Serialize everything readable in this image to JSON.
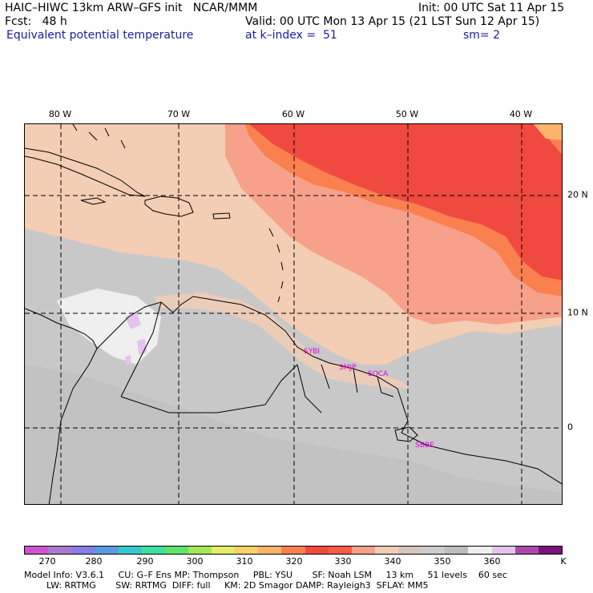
{
  "header": {
    "model_line": "HAIC–HIWC 13km ARW–GFS init   NCAR/MMM",
    "init": "Init: 00 UTC Sat 11 Apr 15",
    "fcst": "Fcst:   48 h",
    "valid": "Valid: 00 UTC Mon 13 Apr 15 (21 LST Sun 12 Apr 15)",
    "field": "Equivalent potential temperature",
    "level": "at k–index =  51",
    "smooth": "sm= 2"
  },
  "map": {
    "lon_labels": [
      "80 W",
      "70 W",
      "60 W",
      "50 W",
      "40 W"
    ],
    "lat_labels": [
      "20 N",
      "10 N",
      "0"
    ],
    "stations": [
      "SYBI",
      "SMJP",
      "SOCA",
      "SBBE"
    ]
  },
  "colorbar": {
    "colors": [
      "#cc55cc",
      "#a97bd0",
      "#8a7ce6",
      "#5a9ae0",
      "#37c9c9",
      "#3fe0a0",
      "#5fe36a",
      "#a2e85a",
      "#e4ee6a",
      "#f7d26b",
      "#fdb36a",
      "#fb8050",
      "#f04a40",
      "#fb5a4a",
      "#f7a08a",
      "#f3cdb4",
      "#d7c4bd",
      "#cccccc",
      "#bdbdbd",
      "#efefef",
      "#e4c4ea",
      "#a84aa8",
      "#7a127a"
    ],
    "labels": [
      "270",
      "280",
      "290",
      "300",
      "310",
      "320",
      "330",
      "340",
      "350",
      "360",
      "K"
    ]
  },
  "footer": {
    "line1": "Model Info: V3.6.1     CU: G–F Ens MP: Thompson     PBL: YSU       SF: Noah LSM     13 km     51 levels    60 sec",
    "line2": "        LW: RRTMG       SW: RRTMG  DIFF: full     KM: 2D Smagor DAMP: Rayleigh3  SFLAY: MM5"
  }
}
